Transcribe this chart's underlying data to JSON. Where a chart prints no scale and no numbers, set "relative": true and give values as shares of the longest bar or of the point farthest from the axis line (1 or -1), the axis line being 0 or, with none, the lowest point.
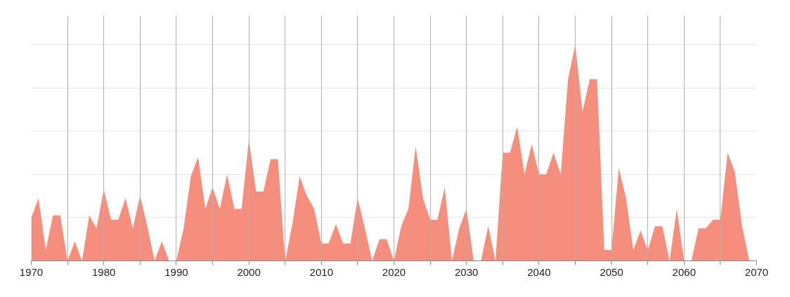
{
  "chart_data": {
    "type": "area",
    "relative": true,
    "color": "#f68e7e",
    "grid": true,
    "x": [
      1970,
      1971,
      1972,
      1973,
      1974,
      1975,
      1976,
      1977,
      1978,
      1979,
      1980,
      1981,
      1982,
      1983,
      1984,
      1985,
      1986,
      1987,
      1988,
      1989,
      1990,
      1991,
      1992,
      1993,
      1994,
      1995,
      1996,
      1997,
      1998,
      1999,
      2000,
      2001,
      2002,
      2003,
      2004,
      2005,
      2006,
      2007,
      2008,
      2009,
      2010,
      2011,
      2012,
      2013,
      2014,
      2015,
      2016,
      2017,
      2018,
      2019,
      2020,
      2021,
      2022,
      2023,
      2024,
      2025,
      2026,
      2027,
      2028,
      2029,
      2030,
      2031,
      2032,
      2033,
      2034,
      2035,
      2036,
      2037,
      2038,
      2039,
      2040,
      2041,
      2042,
      2043,
      2044,
      2045,
      2046,
      2047,
      2048,
      2049,
      2050,
      2051,
      2052,
      2053,
      2054,
      2055,
      2056,
      2057,
      2058,
      2059,
      2060,
      2061,
      2062,
      2063,
      2064,
      2065,
      2066,
      2067,
      2068,
      2069
    ],
    "values": [
      0.2,
      0.29,
      0.05,
      0.21,
      0.21,
      0,
      0.09,
      0,
      0.21,
      0.15,
      0.33,
      0.19,
      0.19,
      0.29,
      0.15,
      0.3,
      0.16,
      0,
      0.09,
      0,
      0,
      0.15,
      0.39,
      0.48,
      0.24,
      0.34,
      0.24,
      0.4,
      0.24,
      0.24,
      0.56,
      0.32,
      0.32,
      0.47,
      0.47,
      0,
      0.17,
      0.39,
      0.3,
      0.24,
      0.08,
      0.08,
      0.17,
      0.08,
      0.08,
      0.29,
      0.15,
      0,
      0.1,
      0.1,
      0,
      0.16,
      0.24,
      0.53,
      0.29,
      0.19,
      0.19,
      0.34,
      0,
      0.15,
      0.24,
      0,
      0,
      0.16,
      0,
      0.5,
      0.5,
      0.62,
      0.4,
      0.54,
      0.4,
      0.4,
      0.5,
      0.4,
      0.84,
      1,
      0.69,
      0.84,
      0.84,
      0.05,
      0.05,
      0.43,
      0.29,
      0.05,
      0.14,
      0.05,
      0.16,
      0.16,
      0,
      0.24,
      0,
      0,
      0.15,
      0.15,
      0.19,
      0.19,
      0.5,
      0.41,
      0.16,
      0
    ],
    "xlim": [
      1970,
      2070
    ],
    "xticks": [
      1970,
      {
        "value": 1975,
        "label": null
      },
      1980,
      {
        "value": 1985,
        "label": null
      },
      1990,
      {
        "value": 1995,
        "label": null
      },
      2000,
      {
        "value": 2005,
        "label": null
      },
      2010,
      {
        "value": 2015,
        "label": null
      },
      2020,
      {
        "value": 2025,
        "label": null
      },
      2030,
      {
        "value": 2035,
        "label": null
      },
      2040,
      {
        "value": 2045,
        "label": null
      },
      2050,
      {
        "value": 2055,
        "label": null
      },
      2060,
      {
        "value": 2065,
        "label": null
      },
      2070
    ]
  }
}
